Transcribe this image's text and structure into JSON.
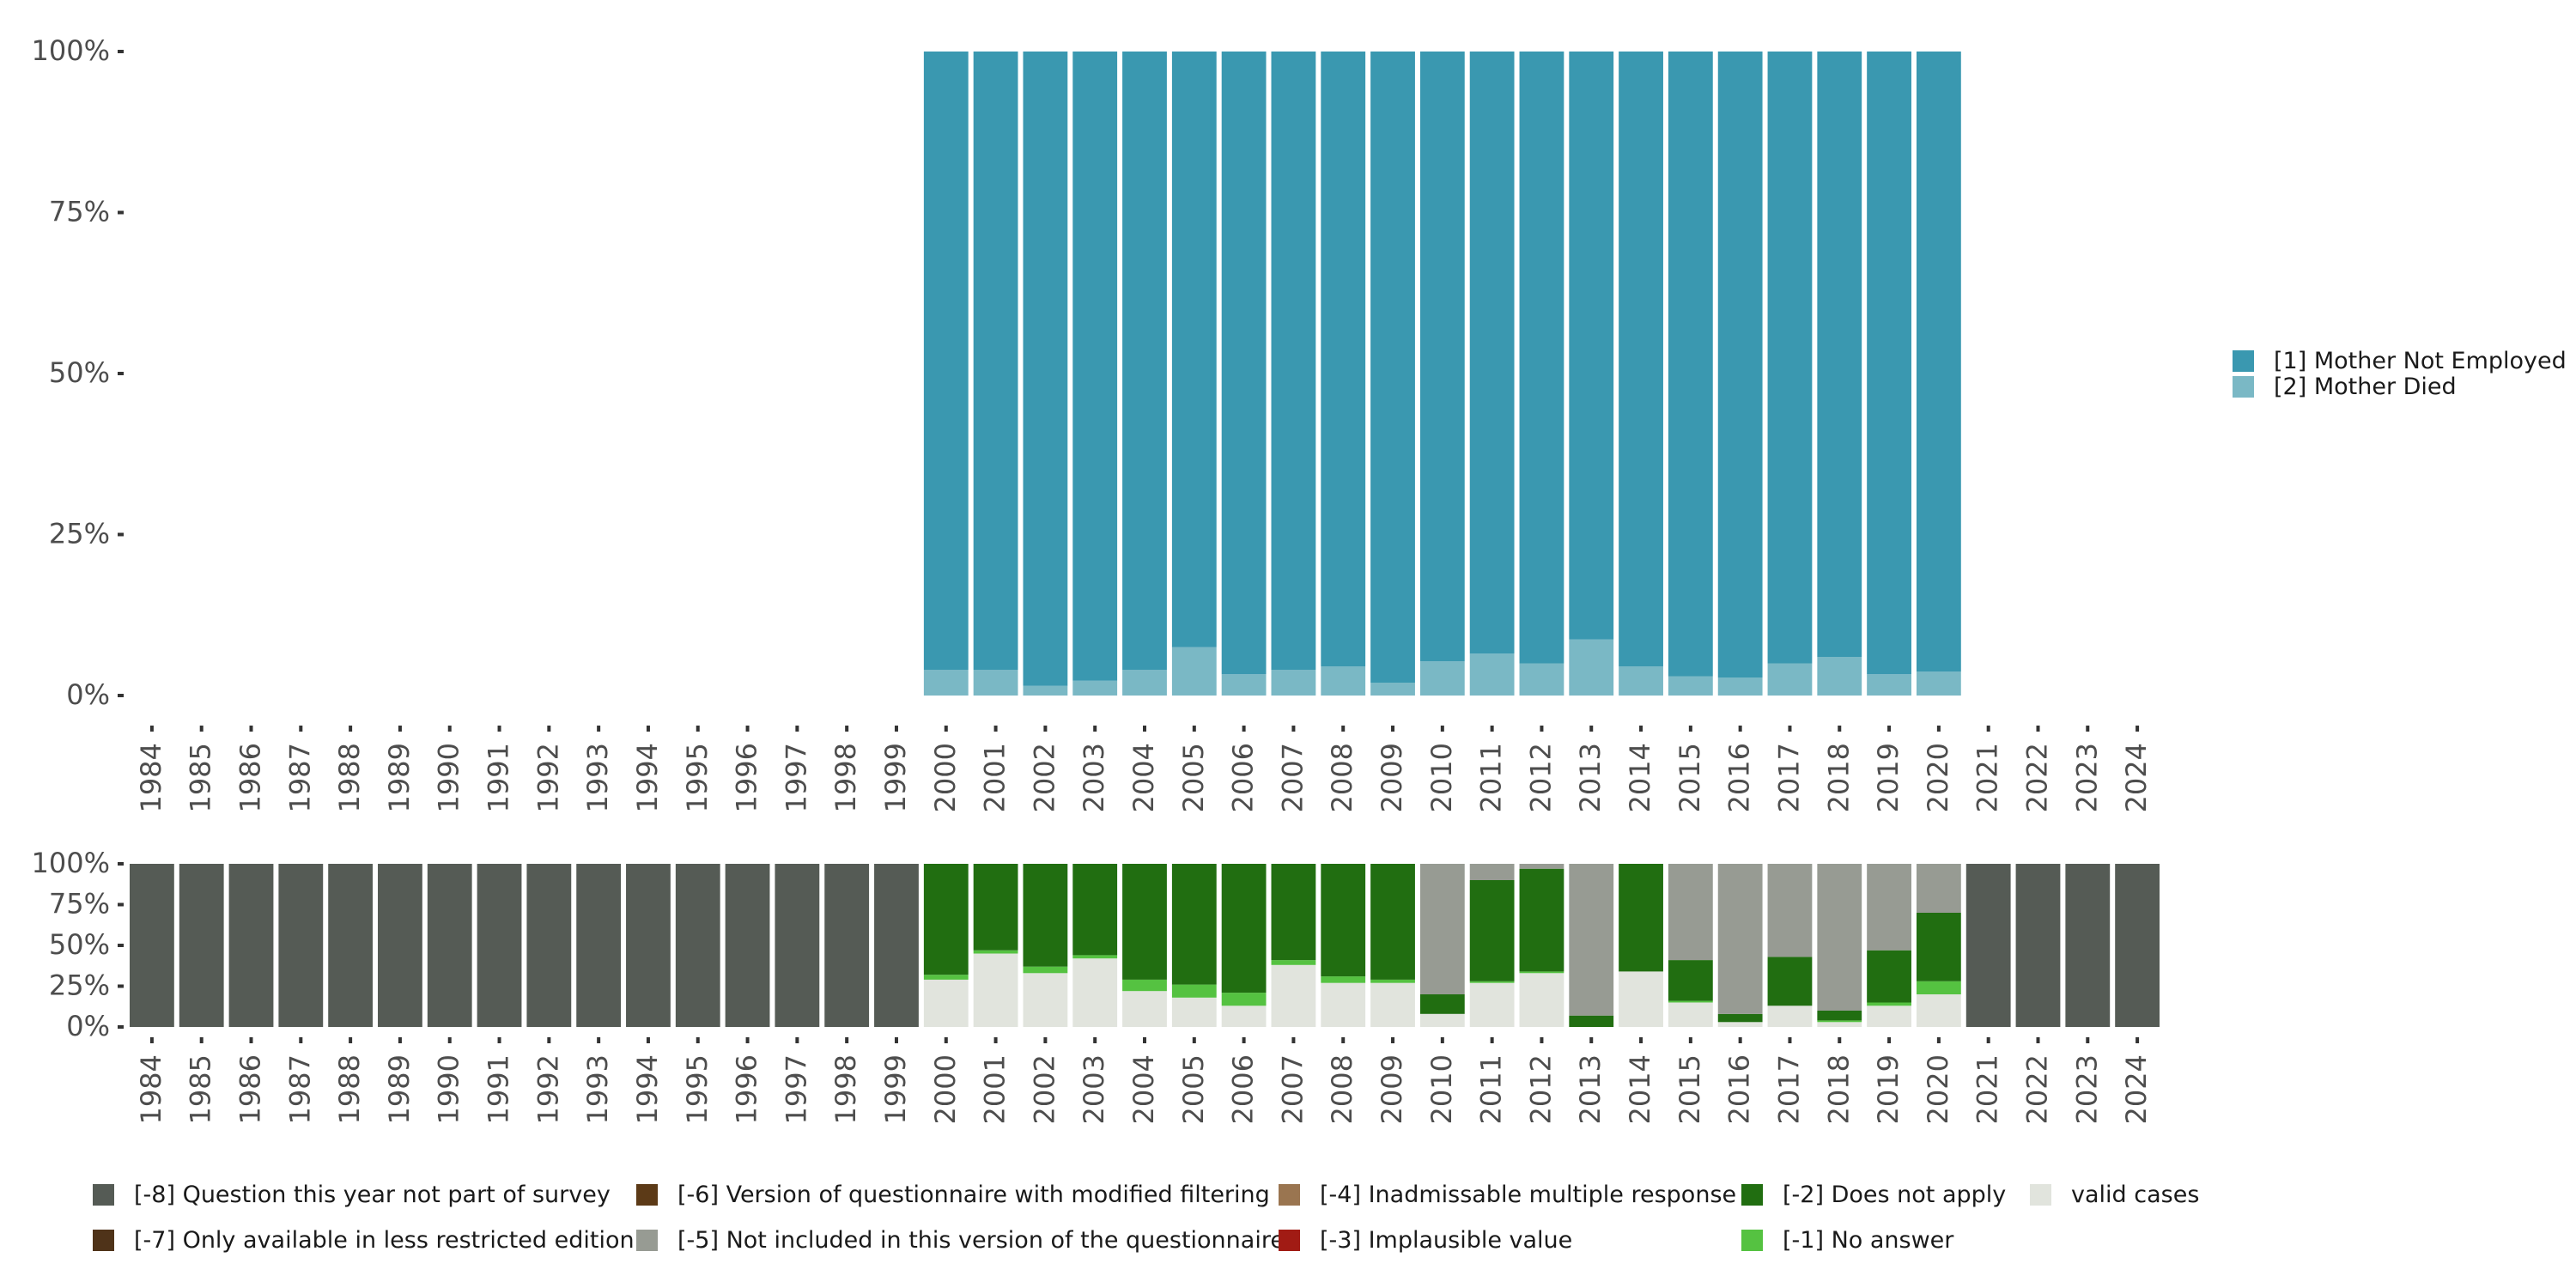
{
  "chart_data": [
    {
      "type": "bar",
      "stacked": true,
      "percent": true,
      "name": "valid-responses",
      "ylim": [
        0,
        100
      ],
      "y_ticks": [
        0,
        25,
        50,
        75,
        100
      ],
      "y_tick_labels": [
        "0%",
        "25%",
        "50%",
        "75%",
        "100%"
      ],
      "categories": [
        "1984",
        "1985",
        "1986",
        "1987",
        "1988",
        "1989",
        "1990",
        "1991",
        "1992",
        "1993",
        "1994",
        "1995",
        "1996",
        "1997",
        "1998",
        "1999",
        "2000",
        "2001",
        "2002",
        "2003",
        "2004",
        "2005",
        "2006",
        "2007",
        "2008",
        "2009",
        "2010",
        "2011",
        "2012",
        "2013",
        "2014",
        "2015",
        "2016",
        "2017",
        "2018",
        "2019",
        "2020",
        "2021",
        "2022",
        "2023",
        "2024"
      ],
      "series": [
        {
          "name": "[2] Mother Died",
          "color": "#7ab8c5",
          "values": [
            null,
            null,
            null,
            null,
            null,
            null,
            null,
            null,
            null,
            null,
            null,
            null,
            null,
            null,
            null,
            null,
            4,
            4,
            1.5,
            2.3,
            4,
            7.5,
            3.3,
            4,
            4.5,
            2,
            5.3,
            6.5,
            5,
            8.7,
            4.5,
            3,
            2.8,
            5,
            6,
            3.3,
            3.7,
            null,
            null,
            null,
            null
          ]
        },
        {
          "name": "[1] Mother Not Employed",
          "color": "#3a98b0",
          "values": [
            null,
            null,
            null,
            null,
            null,
            null,
            null,
            null,
            null,
            null,
            null,
            null,
            null,
            null,
            null,
            null,
            96,
            96,
            98.5,
            97.7,
            96,
            92.5,
            96.7,
            96,
            95.5,
            98,
            94.7,
            93.5,
            95,
            91.3,
            95.5,
            97,
            97.2,
            95,
            94,
            96.7,
            96.3,
            null,
            null,
            null,
            null
          ]
        }
      ],
      "legend": {
        "position": "right",
        "entries": [
          "[1] Mother Not Employed",
          "[2] Mother Died"
        ]
      }
    },
    {
      "type": "bar",
      "stacked": true,
      "percent": true,
      "name": "missing-codes",
      "ylim": [
        0,
        100
      ],
      "y_ticks": [
        0,
        25,
        50,
        75,
        100
      ],
      "y_tick_labels": [
        "0%",
        "25%",
        "50%",
        "75%",
        "100%"
      ],
      "categories": [
        "1984",
        "1985",
        "1986",
        "1987",
        "1988",
        "1989",
        "1990",
        "1991",
        "1992",
        "1993",
        "1994",
        "1995",
        "1996",
        "1997",
        "1998",
        "1999",
        "2000",
        "2001",
        "2002",
        "2003",
        "2004",
        "2005",
        "2006",
        "2007",
        "2008",
        "2009",
        "2010",
        "2011",
        "2012",
        "2013",
        "2014",
        "2015",
        "2016",
        "2017",
        "2018",
        "2019",
        "2020",
        "2021",
        "2022",
        "2023",
        "2024"
      ],
      "series": [
        {
          "name": "valid cases",
          "color": "#e1e4dd",
          "values": [
            0,
            0,
            0,
            0,
            0,
            0,
            0,
            0,
            0,
            0,
            0,
            0,
            0,
            0,
            0,
            0,
            29,
            45,
            33,
            42,
            22,
            18,
            13,
            38,
            27,
            27,
            8,
            27,
            33,
            0,
            34,
            15,
            3,
            13,
            3,
            13,
            20,
            0,
            0,
            0,
            0
          ]
        },
        {
          "name": "[-1] No answer",
          "color": "#55c241",
          "values": [
            0,
            0,
            0,
            0,
            0,
            0,
            0,
            0,
            0,
            0,
            0,
            0,
            0,
            0,
            0,
            0,
            3,
            2,
            4,
            2,
            7,
            8,
            8,
            3,
            4,
            2,
            0,
            1,
            1,
            0,
            0,
            1,
            0,
            0,
            1,
            2,
            8,
            0,
            0,
            0,
            0
          ]
        },
        {
          "name": "[-2] Does not apply",
          "color": "#216e11",
          "values": [
            0,
            0,
            0,
            0,
            0,
            0,
            0,
            0,
            0,
            0,
            0,
            0,
            0,
            0,
            0,
            0,
            68,
            53,
            63,
            56,
            71,
            74,
            79,
            59,
            69,
            71,
            12,
            62,
            63,
            7,
            66,
            25,
            5,
            30,
            6,
            32,
            42,
            0,
            0,
            0,
            0
          ]
        },
        {
          "name": "[-5] Not included in this version of the questionnaire",
          "color": "#979b93",
          "values": [
            0,
            0,
            0,
            0,
            0,
            0,
            0,
            0,
            0,
            0,
            0,
            0,
            0,
            0,
            0,
            0,
            0,
            0,
            0,
            0,
            0,
            0,
            0,
            0,
            0,
            0,
            80,
            10,
            3,
            93,
            0,
            59,
            92,
            57,
            90,
            53,
            30,
            0,
            0,
            0,
            0
          ]
        },
        {
          "name": "[-8] Question this year not part of survey",
          "color": "#555b55",
          "values": [
            100,
            100,
            100,
            100,
            100,
            100,
            100,
            100,
            100,
            100,
            100,
            100,
            100,
            100,
            100,
            100,
            0,
            0,
            0,
            0,
            0,
            0,
            0,
            0,
            0,
            0,
            0,
            0,
            0,
            0,
            0,
            0,
            0,
            0,
            0,
            0,
            0,
            100,
            100,
            100,
            100
          ]
        }
      ]
    }
  ],
  "bottom_legend": [
    {
      "label": "[-8] Question this year not part of survey",
      "color": "#555b55"
    },
    {
      "label": "[-7] Only available in less restricted edition",
      "color": "#4f3319"
    },
    {
      "label": "[-6] Version of questionnaire with modified filtering",
      "color": "#5c3a17"
    },
    {
      "label": "[-5] Not included in this version of the questionnaire",
      "color": "#979b93"
    },
    {
      "label": "[-4] Inadmissable multiple response",
      "color": "#9a7550"
    },
    {
      "label": "[-3] Implausible value",
      "color": "#a11b14"
    },
    {
      "label": "[-2] Does not apply",
      "color": "#216e11"
    },
    {
      "label": "[-1] No answer",
      "color": "#55c241"
    },
    {
      "label": "valid cases",
      "color": "#e1e4dd"
    }
  ]
}
